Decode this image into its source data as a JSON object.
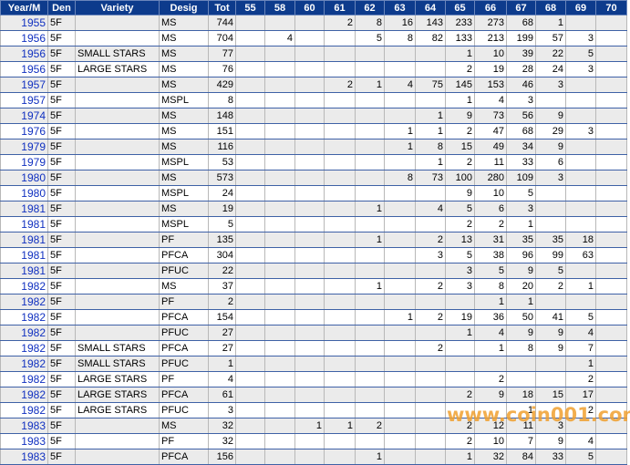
{
  "table": {
    "columns": [
      "Year/M",
      "Den",
      "Variety",
      "Desig",
      "Tot",
      "55",
      "58",
      "60",
      "61",
      "62",
      "63",
      "64",
      "65",
      "66",
      "67",
      "68",
      "69",
      "70"
    ],
    "rows": [
      [
        1955,
        "5F",
        null,
        "MS",
        744,
        null,
        null,
        null,
        2,
        8,
        16,
        143,
        233,
        273,
        68,
        1,
        null,
        null
      ],
      [
        1956,
        "5F",
        null,
        "MS",
        704,
        null,
        4,
        null,
        null,
        5,
        8,
        82,
        133,
        213,
        199,
        57,
        3,
        null
      ],
      [
        1956,
        "5F",
        "SMALL STARS",
        "MS",
        77,
        null,
        null,
        null,
        null,
        null,
        null,
        null,
        1,
        10,
        39,
        22,
        5,
        null
      ],
      [
        1956,
        "5F",
        "LARGE STARS",
        "MS",
        76,
        null,
        null,
        null,
        null,
        null,
        null,
        null,
        2,
        19,
        28,
        24,
        3,
        null
      ],
      [
        1957,
        "5F",
        null,
        "MS",
        429,
        null,
        null,
        null,
        2,
        1,
        4,
        75,
        145,
        153,
        46,
        3,
        null,
        null
      ],
      [
        1957,
        "5F",
        null,
        "MSPL",
        8,
        null,
        null,
        null,
        null,
        null,
        null,
        null,
        1,
        4,
        3,
        null,
        null,
        null
      ],
      [
        1974,
        "5F",
        null,
        "MS",
        148,
        null,
        null,
        null,
        null,
        null,
        null,
        1,
        9,
        73,
        56,
        9,
        null,
        null
      ],
      [
        1976,
        "5F",
        null,
        "MS",
        151,
        null,
        null,
        null,
        null,
        null,
        1,
        1,
        2,
        47,
        68,
        29,
        3,
        null
      ],
      [
        1979,
        "5F",
        null,
        "MS",
        116,
        null,
        null,
        null,
        null,
        null,
        1,
        8,
        15,
        49,
        34,
        9,
        null,
        null
      ],
      [
        1979,
        "5F",
        null,
        "MSPL",
        53,
        null,
        null,
        null,
        null,
        null,
        null,
        1,
        2,
        11,
        33,
        6,
        null,
        null
      ],
      [
        1980,
        "5F",
        null,
        "MS",
        573,
        null,
        null,
        null,
        null,
        null,
        8,
        73,
        100,
        280,
        109,
        3,
        null,
        null
      ],
      [
        1980,
        "5F",
        null,
        "MSPL",
        24,
        null,
        null,
        null,
        null,
        null,
        null,
        null,
        9,
        10,
        5,
        null,
        null,
        null
      ],
      [
        1981,
        "5F",
        null,
        "MS",
        19,
        null,
        null,
        null,
        null,
        1,
        null,
        4,
        5,
        6,
        3,
        null,
        null,
        null
      ],
      [
        1981,
        "5F",
        null,
        "MSPL",
        5,
        null,
        null,
        null,
        null,
        null,
        null,
        null,
        2,
        2,
        1,
        null,
        null,
        null
      ],
      [
        1981,
        "5F",
        null,
        "PF",
        135,
        null,
        null,
        null,
        null,
        1,
        null,
        2,
        13,
        31,
        35,
        35,
        18,
        null
      ],
      [
        1981,
        "5F",
        null,
        "PFCA",
        304,
        null,
        null,
        null,
        null,
        null,
        null,
        3,
        5,
        38,
        96,
        99,
        63,
        null
      ],
      [
        1981,
        "5F",
        null,
        "PFUC",
        22,
        null,
        null,
        null,
        null,
        null,
        null,
        null,
        3,
        5,
        9,
        5,
        null,
        null
      ],
      [
        1982,
        "5F",
        null,
        "MS",
        37,
        null,
        null,
        null,
        null,
        1,
        null,
        2,
        3,
        8,
        20,
        2,
        1,
        null
      ],
      [
        1982,
        "5F",
        null,
        "PF",
        2,
        null,
        null,
        null,
        null,
        null,
        null,
        null,
        null,
        1,
        1,
        null,
        null,
        null
      ],
      [
        1982,
        "5F",
        null,
        "PFCA",
        154,
        null,
        null,
        null,
        null,
        null,
        1,
        2,
        19,
        36,
        50,
        41,
        5,
        null
      ],
      [
        1982,
        "5F",
        null,
        "PFUC",
        27,
        null,
        null,
        null,
        null,
        null,
        null,
        null,
        1,
        4,
        9,
        9,
        4,
        null
      ],
      [
        1982,
        "5F",
        "SMALL STARS",
        "PFCA",
        27,
        null,
        null,
        null,
        null,
        null,
        null,
        2,
        null,
        1,
        8,
        9,
        7,
        null
      ],
      [
        1982,
        "5F",
        "SMALL STARS",
        "PFUC",
        1,
        null,
        null,
        null,
        null,
        null,
        null,
        null,
        null,
        null,
        null,
        null,
        1,
        null
      ],
      [
        1982,
        "5F",
        "LARGE STARS",
        "PF",
        4,
        null,
        null,
        null,
        null,
        null,
        null,
        null,
        null,
        2,
        null,
        null,
        2,
        null
      ],
      [
        1982,
        "5F",
        "LARGE STARS",
        "PFCA",
        61,
        null,
        null,
        null,
        null,
        null,
        null,
        null,
        2,
        9,
        18,
        15,
        17,
        null
      ],
      [
        1982,
        "5F",
        "LARGE STARS",
        "PFUC",
        3,
        null,
        null,
        null,
        null,
        null,
        null,
        null,
        null,
        null,
        1,
        null,
        2,
        null
      ],
      [
        1983,
        "5F",
        null,
        "MS",
        32,
        null,
        null,
        1,
        1,
        2,
        null,
        null,
        2,
        12,
        11,
        3,
        null,
        null
      ],
      [
        1983,
        "5F",
        null,
        "PF",
        32,
        null,
        null,
        null,
        null,
        null,
        null,
        null,
        2,
        10,
        7,
        9,
        4,
        null
      ],
      [
        1983,
        "5F",
        null,
        "PFCA",
        156,
        null,
        null,
        null,
        null,
        1,
        null,
        null,
        1,
        32,
        84,
        33,
        5,
        null
      ]
    ]
  },
  "watermark": "www.coin001.com"
}
